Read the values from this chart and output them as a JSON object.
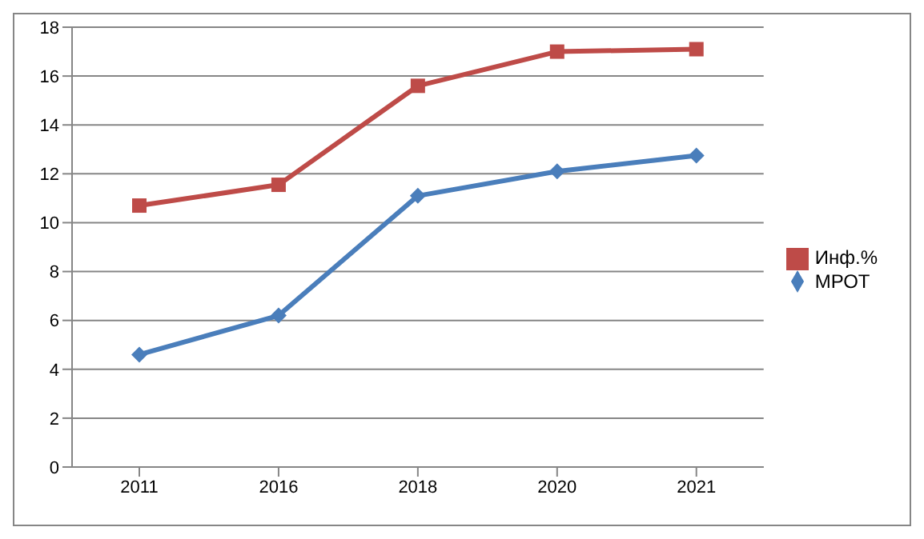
{
  "chart_data": {
    "type": "line",
    "categories": [
      "2011",
      "2016",
      "2018",
      "2020",
      "2021"
    ],
    "series": [
      {
        "name": "Инф.%",
        "color": "#be4b48",
        "marker": "square",
        "values": [
          10.7,
          11.55,
          15.6,
          17.0,
          17.1
        ]
      },
      {
        "name": "МРОТ",
        "color": "#4a7ebb",
        "marker": "diamond",
        "values": [
          4.6,
          6.2,
          11.1,
          12.1,
          12.75
        ]
      }
    ],
    "ylim": [
      0,
      18
    ],
    "yticks": [
      0,
      2,
      4,
      6,
      8,
      10,
      12,
      14,
      16,
      18
    ],
    "grid": "y",
    "legend": "right",
    "line_style": "solid"
  }
}
